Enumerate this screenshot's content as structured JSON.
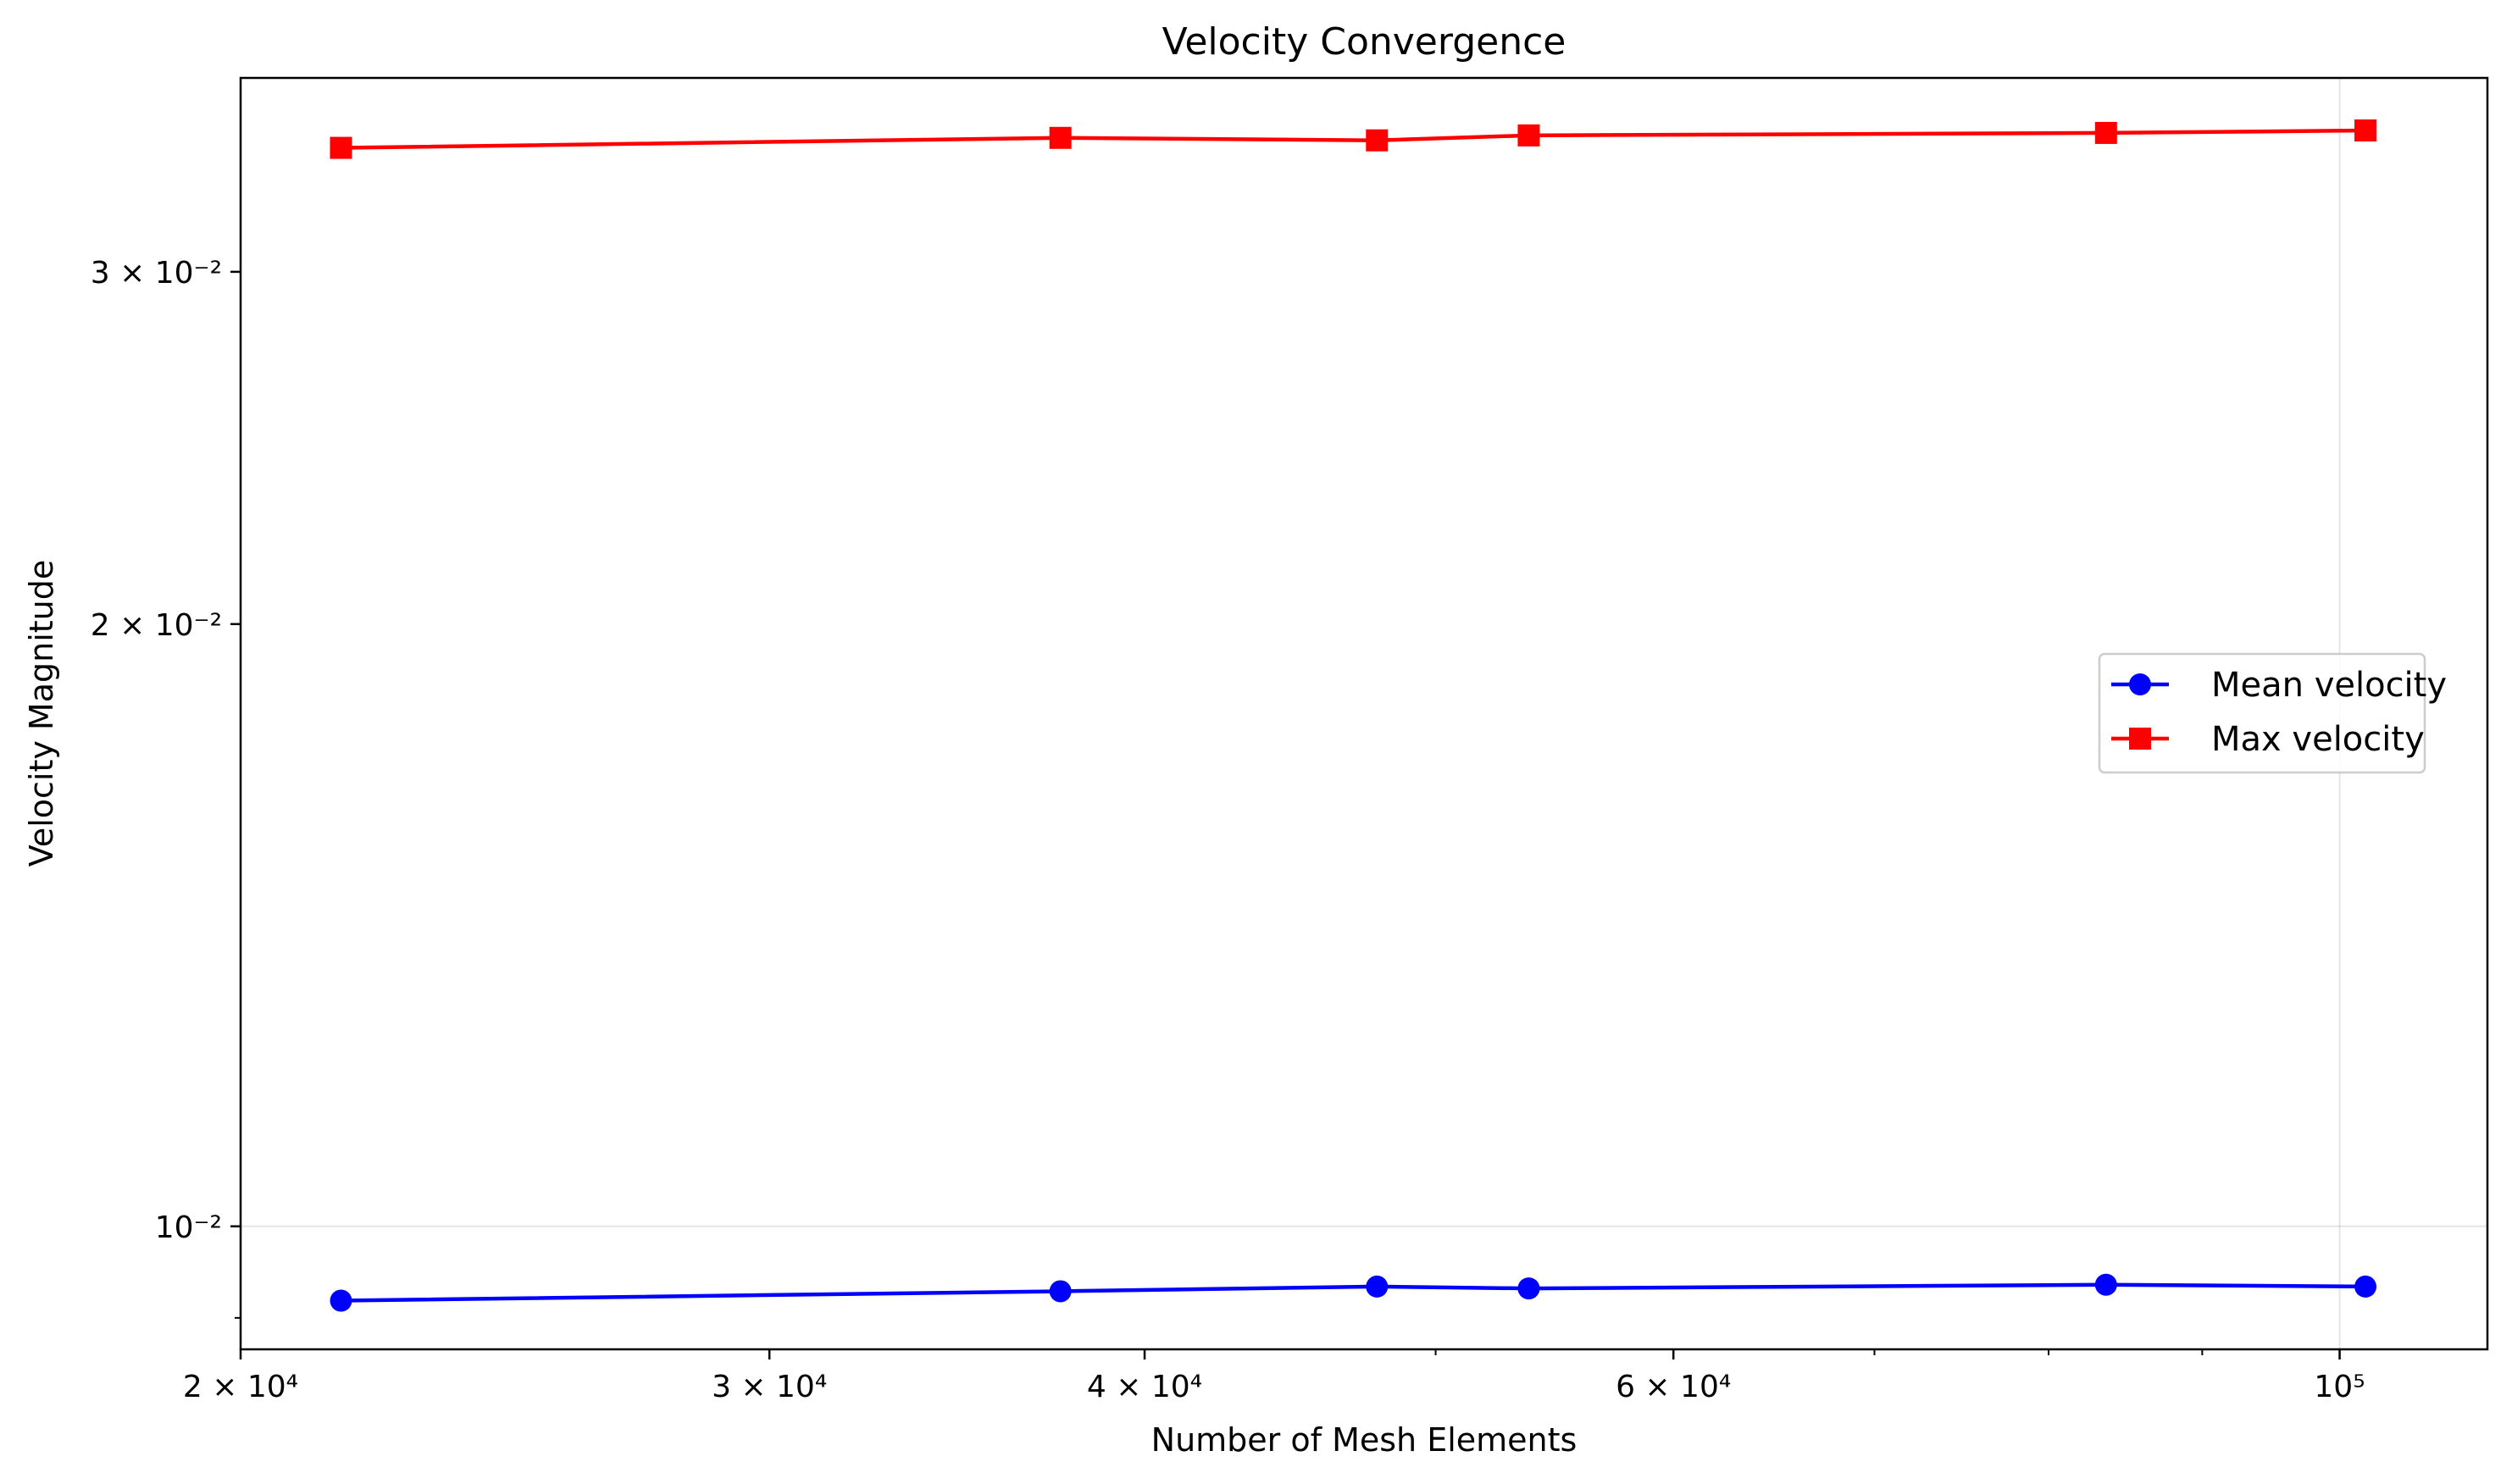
{
  "chart_data": {
    "type": "line",
    "title": "Velocity Convergence",
    "xlabel": "Number of Mesh Elements",
    "ylabel": "Velocity Magnitude",
    "xscale": "log",
    "yscale": "log",
    "xlim": [
      20000,
      112000
    ],
    "ylim": [
      0.00868,
      0.0375
    ],
    "x": [
      21600,
      37500,
      47800,
      53700,
      83600,
      102000
    ],
    "series": [
      {
        "name": "Mean velocity",
        "color": "#0000ff",
        "marker": "circle",
        "values": [
          0.00918,
          0.00928,
          0.00933,
          0.00931,
          0.00935,
          0.00933
        ]
      },
      {
        "name": "Max velocity",
        "color": "#ff0000",
        "marker": "square",
        "values": [
          0.0346,
          0.035,
          0.0349,
          0.0351,
          0.0352,
          0.0353
        ]
      }
    ],
    "x_ticks": [
      {
        "value": 20000,
        "label": "2 × 10⁴"
      },
      {
        "value": 30000,
        "label": "3 × 10⁴"
      },
      {
        "value": 40000,
        "label": "4 × 10⁴"
      },
      {
        "value": 60000,
        "label": "6 × 10⁴"
      },
      {
        "value": 100000,
        "label": "10⁵"
      }
    ],
    "x_minor_ticks": [
      50000,
      70000,
      80000,
      90000
    ],
    "y_ticks": [
      {
        "value": 0.01,
        "label": "10⁻²"
      },
      {
        "value": 0.02,
        "label": "2 × 10⁻²"
      },
      {
        "value": 0.03,
        "label": "3 × 10⁻²"
      }
    ],
    "y_minor_ticks": [
      0.009
    ],
    "grid": {
      "x": [
        100000
      ],
      "y": [
        0.01
      ]
    },
    "legend_position": "center-right"
  }
}
